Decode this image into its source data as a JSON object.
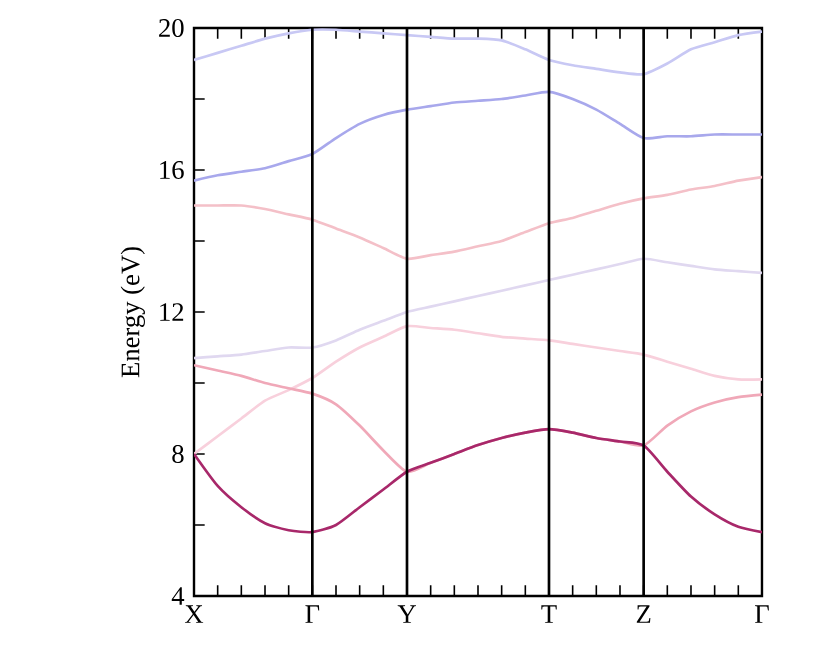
{
  "chart_data": {
    "type": "line",
    "ylabel": "Energy (eV)",
    "categories": [
      "X",
      null,
      null,
      null,
      null,
      "Γ",
      null,
      null,
      null,
      "Y",
      null,
      null,
      null,
      null,
      null,
      "T",
      null,
      null,
      null,
      "Z",
      null,
      null,
      null,
      null,
      "Γ"
    ],
    "ylim": [
      4,
      20
    ],
    "yticks": [
      4,
      {
        "value": 6,
        "label": null
      },
      8,
      {
        "value": 10,
        "label": null
      },
      12,
      {
        "value": 14,
        "label": null
      },
      16,
      {
        "value": 18,
        "label": null
      },
      20
    ],
    "grid": false,
    "marker": "none",
    "line_style": "solid",
    "ref_lines": [
      {
        "axis": "x",
        "value": "Γ",
        "color": "#000000"
      },
      {
        "axis": "x",
        "value": "Y",
        "color": "#000000"
      },
      {
        "axis": "x",
        "value": "T",
        "color": "#000000"
      },
      {
        "axis": "x",
        "value": "Z",
        "color": "#000000"
      }
    ],
    "series": [
      {
        "color": "#e0d8f0",
        "values": [
          10.7,
          10.75,
          10.8,
          10.9,
          11.0,
          11.0,
          11.2,
          11.5,
          11.75,
          12.0,
          12.15,
          12.3,
          12.45,
          12.6,
          12.75,
          12.9,
          13.05,
          13.2,
          13.35,
          13.5,
          13.4,
          13.3,
          13.2,
          13.15,
          13.1
        ]
      },
      {
        "color": "#f4c0c8",
        "values": [
          15.0,
          15.0,
          15.0,
          14.9,
          14.75,
          14.6,
          14.35,
          14.1,
          13.8,
          13.5,
          13.6,
          13.7,
          13.85,
          14.0,
          14.25,
          14.5,
          14.65,
          14.85,
          15.05,
          15.2,
          15.3,
          15.45,
          15.55,
          15.7,
          15.8
        ]
      },
      {
        "color": "#c8c8f4",
        "values": [
          19.1,
          19.3,
          19.5,
          19.7,
          19.85,
          19.95,
          19.95,
          19.9,
          19.85,
          19.8,
          19.75,
          19.7,
          19.7,
          19.65,
          19.4,
          19.1,
          18.95,
          18.85,
          18.75,
          18.7,
          19.0,
          19.4,
          19.6,
          19.8,
          19.9
        ]
      },
      {
        "color": "#a8a8ec",
        "values": [
          15.7,
          15.85,
          15.95,
          16.05,
          16.25,
          16.45,
          16.9,
          17.3,
          17.55,
          17.7,
          17.8,
          17.9,
          17.95,
          18.0,
          18.1,
          18.2,
          18.0,
          17.7,
          17.3,
          16.9,
          16.95,
          16.95,
          17.0,
          17.0,
          17.0
        ]
      },
      {
        "color": "#f8d0dc",
        "values": [
          8.0,
          8.5,
          9.0,
          9.5,
          9.8,
          10.14,
          10.6,
          11.0,
          11.3,
          11.6,
          11.55,
          11.5,
          11.4,
          11.3,
          11.25,
          11.2,
          11.1,
          11.0,
          10.9,
          10.8,
          10.6,
          10.4,
          10.2,
          10.1,
          10.1
        ]
      },
      {
        "color": "#f0a8b8",
        "values": [
          10.5,
          10.35,
          10.2,
          10.0,
          9.85,
          9.7,
          9.4,
          8.8,
          8.1,
          7.5,
          7.75,
          8.0,
          8.25,
          8.45,
          8.6,
          8.7,
          8.6,
          8.45,
          8.35,
          8.24,
          8.8,
          9.2,
          9.45,
          9.6,
          9.67
        ]
      },
      {
        "color": "#a8286a",
        "values": [
          8.0,
          7.1,
          6.5,
          6.05,
          5.85,
          5.8,
          6.0,
          6.5,
          7.0,
          7.5,
          7.75,
          8.0,
          8.25,
          8.45,
          8.6,
          8.7,
          8.6,
          8.45,
          8.35,
          8.24,
          7.5,
          6.8,
          6.3,
          5.95,
          5.8
        ]
      }
    ]
  }
}
